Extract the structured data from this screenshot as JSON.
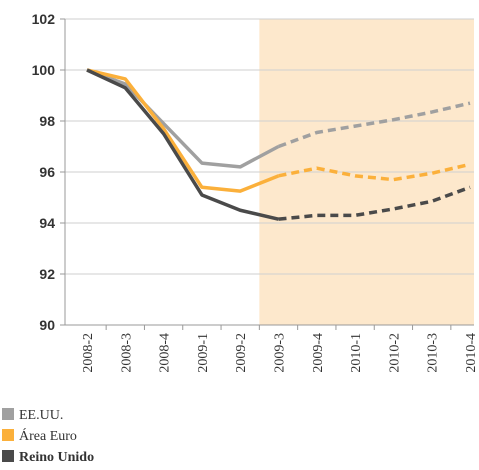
{
  "chart_data": {
    "type": "line",
    "categories": [
      "2008-2",
      "2008-3",
      "2008-4",
      "2009-1",
      "2009-2",
      "2009-3",
      "2009-4",
      "2010-1",
      "2010-2",
      "2010-3",
      "2010-4"
    ],
    "series": [
      {
        "name": "EE.UU.",
        "color": "#a0a0a0",
        "values": [
          100,
          99.45,
          97.9,
          96.35,
          96.2,
          97.0,
          97.55,
          97.8,
          98.05,
          98.35,
          98.7
        ]
      },
      {
        "name": "Área Euro",
        "color": "#fbb03b",
        "values": [
          100,
          99.65,
          97.7,
          95.4,
          95.25,
          95.85,
          96.15,
          95.85,
          95.7,
          95.95,
          96.3
        ]
      },
      {
        "name": "Reino Unido",
        "color": "#4a4a4a",
        "values": [
          100,
          99.3,
          97.5,
          95.1,
          94.5,
          94.15,
          94.3,
          94.3,
          94.55,
          94.85,
          95.4
        ]
      }
    ],
    "ylim": [
      90,
      102
    ],
    "yticks": [
      90,
      92,
      94,
      96,
      98,
      100,
      102
    ],
    "grid": true,
    "projection_start": "2009-3",
    "projection_color": "#fde8cc"
  }
}
